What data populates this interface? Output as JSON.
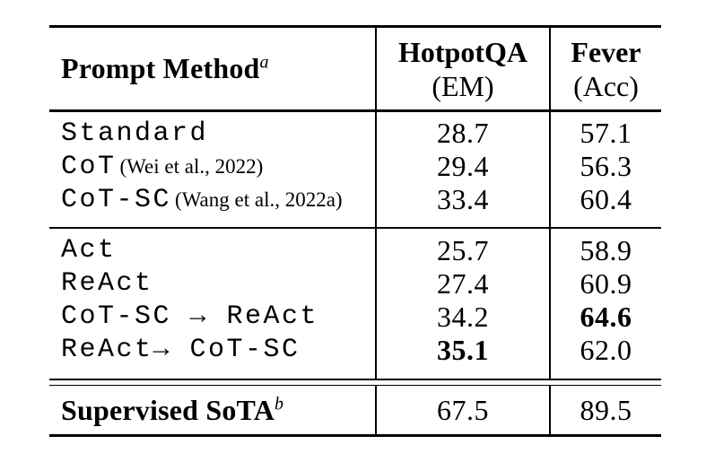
{
  "table": {
    "header": {
      "method_label": "Prompt Method",
      "method_sup": "a",
      "hotpotqa_line1": "HotpotQA",
      "hotpotqa_line2": "(EM)",
      "fever_line1": "Fever",
      "fever_line2": "(Acc)"
    },
    "sections": [
      {
        "rows": [
          {
            "method": "Standard",
            "citation": "",
            "hotpotqa": "28.7",
            "fever": "57.1"
          },
          {
            "method": "CoT",
            "citation": "(Wei et al., 2022)",
            "hotpotqa": "29.4",
            "fever": "56.3"
          },
          {
            "method": "CoT-SC",
            "citation": "(Wang et al., 2022a)",
            "hotpotqa": "33.4",
            "fever": "60.4"
          }
        ]
      },
      {
        "rows": [
          {
            "method": "Act",
            "citation": "",
            "hotpotqa": "25.7",
            "fever": "58.9"
          },
          {
            "method": "ReAct",
            "citation": "",
            "hotpotqa": "27.4",
            "fever": "60.9"
          },
          {
            "method": "CoT-SC → ReAct",
            "citation": "",
            "hotpotqa": "34.2",
            "fever": "64.6",
            "bold_cell": "fever"
          },
          {
            "method": "ReAct→ CoT-SC",
            "citation": "",
            "hotpotqa": "35.1",
            "fever": "62.0",
            "bold_cell": "hotpotqa"
          }
        ]
      }
    ],
    "footer": {
      "label": "Supervised SoTA",
      "sup": "b",
      "hotpotqa": "67.5",
      "fever": "89.5"
    },
    "colors": {
      "text": "#000000",
      "rule": "#000000",
      "background": "#ffffff"
    }
  }
}
